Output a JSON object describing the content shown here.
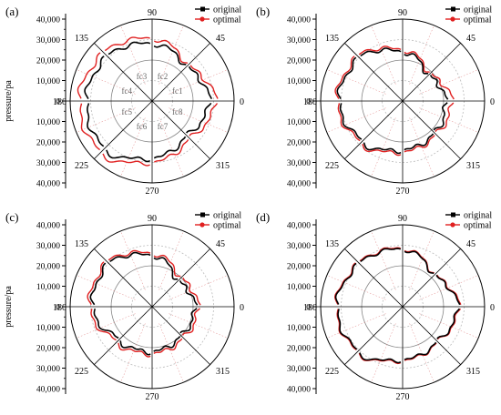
{
  "figure": {
    "panels": [
      {
        "label": "(a)"
      },
      {
        "label": "(b)"
      },
      {
        "label": "(c)"
      },
      {
        "label": "(d)"
      }
    ]
  },
  "chart_data": [
    {
      "panel": "(a)",
      "type": "polar_line",
      "ylabel": "pressure/pa",
      "r_axis": {
        "range": [
          -40000,
          40000
        ],
        "ticks": [
          -40000,
          -30000,
          -20000,
          -10000,
          0,
          10000,
          20000,
          30000,
          40000
        ],
        "tick_labels": [
          "40,000",
          "30,000",
          "20,000",
          "10,000",
          "0",
          "10,000",
          "20,000",
          "30,000",
          "40,000"
        ]
      },
      "angular_ticks": [
        0,
        45,
        90,
        135,
        180,
        225,
        270,
        315
      ],
      "angular_labels": [
        "0",
        "45",
        "90",
        "135",
        "180",
        "225",
        "270",
        "315"
      ],
      "grid": true,
      "legend": {
        "position": "top-right",
        "entries": [
          "original",
          "optimal"
        ]
      },
      "sector_labels": [
        {
          "text": "fc1",
          "angle": 22.5
        },
        {
          "text": "fc2",
          "angle": 67.5
        },
        {
          "text": "fc3",
          "angle": 112.5
        },
        {
          "text": "fc4",
          "angle": 157.5
        },
        {
          "text": "fc5",
          "angle": 202.5
        },
        {
          "text": "fc6",
          "angle": 247.5
        },
        {
          "text": "fc7",
          "angle": 292.5
        },
        {
          "text": "fc8",
          "angle": 337.5
        }
      ],
      "series": [
        {
          "name": "original",
          "color": "#000000",
          "base": [
            28000,
            24000,
            28000,
            31000,
            32000,
            33000,
            28000,
            24000
          ],
          "wobble": 1500
        },
        {
          "name": "optimal",
          "color": "#e02020",
          "base": [
            31000,
            25000,
            30500,
            33500,
            35500,
            35500,
            30000,
            26000
          ],
          "wobble": 1500
        }
      ]
    },
    {
      "panel": "(b)",
      "type": "polar_line",
      "ylabel": "",
      "r_axis": {
        "range": [
          -40000,
          40000
        ],
        "ticks": [
          -40000,
          -30000,
          -20000,
          -10000,
          0,
          10000,
          20000,
          30000,
          40000
        ],
        "tick_labels": [
          "40,000",
          "30,000",
          "20,000",
          "10,000",
          "0",
          "10,000",
          "20,000",
          "30,000",
          "40,000"
        ]
      },
      "angular_ticks": [
        0,
        45,
        90,
        135,
        180,
        225,
        270,
        315
      ],
      "angular_labels": [
        "0",
        "45",
        "90",
        "135",
        "180",
        "225",
        "270",
        "315"
      ],
      "grid": true,
      "legend": {
        "position": "top-right",
        "entries": [
          "original",
          "optimal"
        ]
      },
      "sector_labels": [],
      "series": [
        {
          "name": "original",
          "color": "#000000",
          "base": [
            21000,
            18000,
            24000,
            30000,
            31000,
            28000,
            24000,
            22000
          ],
          "wobble": 1500
        },
        {
          "name": "optimal",
          "color": "#e02020",
          "base": [
            24000,
            19000,
            25000,
            31000,
            32000,
            29000,
            25000,
            23000
          ],
          "wobble": 1500
        }
      ]
    },
    {
      "panel": "(c)",
      "type": "polar_line",
      "ylabel": "pressure/pa",
      "r_axis": {
        "range": [
          -40000,
          40000
        ],
        "ticks": [
          -40000,
          -30000,
          -20000,
          -10000,
          0,
          10000,
          20000,
          30000,
          40000
        ],
        "tick_labels": [
          "40,000",
          "30,000",
          "20,000",
          "10,000",
          "0",
          "10,000",
          "20,000",
          "30,000",
          "40,000"
        ]
      },
      "angular_ticks": [
        0,
        45,
        90,
        135,
        180,
        225,
        270,
        315
      ],
      "angular_labels": [
        "0",
        "45",
        "90",
        "135",
        "180",
        "225",
        "270",
        "315"
      ],
      "grid": true,
      "legend": {
        "position": "top-right",
        "entries": [
          "original",
          "optimal"
        ]
      },
      "sector_labels": [],
      "series": [
        {
          "name": "original",
          "color": "#000000",
          "base": [
            21000,
            18000,
            25000,
            30000,
            29000,
            23000,
            22000,
            20000
          ],
          "wobble": 1500
        },
        {
          "name": "optimal",
          "color": "#e02020",
          "base": [
            22500,
            20000,
            26000,
            31000,
            30500,
            24500,
            23000,
            21500
          ],
          "wobble": 1500
        }
      ]
    },
    {
      "panel": "(d)",
      "type": "polar_line",
      "ylabel": "",
      "r_axis": {
        "range": [
          -40000,
          40000
        ],
        "ticks": [
          -40000,
          -30000,
          -20000,
          -10000,
          0,
          10000,
          20000,
          30000,
          40000
        ],
        "tick_labels": [
          "40,000",
          "30,000",
          "20,000",
          "10,000",
          "0",
          "10,000",
          "20,000",
          "30,000",
          "40,000"
        ]
      },
      "angular_ticks": [
        0,
        45,
        90,
        135,
        180,
        225,
        270,
        315
      ],
      "angular_labels": [
        "0",
        "45",
        "90",
        "135",
        "180",
        "225",
        "270",
        "315"
      ],
      "grid": true,
      "legend": {
        "position": "top-right",
        "entries": [
          "original",
          "optimal"
        ]
      },
      "sector_labels": [],
      "series": [
        {
          "name": "original",
          "color": "#000000",
          "base": [
            27000,
            22000,
            28000,
            30000,
            32000,
            31000,
            26000,
            24000
          ],
          "wobble": 1300
        },
        {
          "name": "optimal",
          "color": "#e02020",
          "base": [
            27500,
            22300,
            28400,
            30400,
            32400,
            31400,
            26400,
            24300
          ],
          "wobble": 1300
        }
      ]
    }
  ]
}
